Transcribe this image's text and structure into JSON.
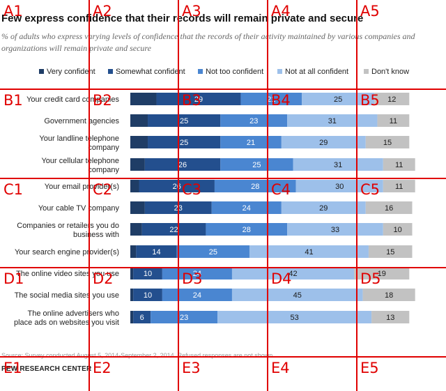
{
  "colors": {
    "very_confident": "#1f3d66",
    "somewhat_confident": "#234f8e",
    "not_too_confident": "#4a86d1",
    "not_at_all_confident": "#9dc0ea",
    "dont_know": "#c2c2c2",
    "grid_overlay": "#e00000"
  },
  "chart_data": {
    "type": "bar",
    "orientation": "horizontal-stacked",
    "title": "Few express confidence that their records will remain private and secure",
    "subtitle": "% of adults who express varying levels of confidence that the records of their activity maintained by various companies and organizations will remain private and secure",
    "categories": [
      "Your credit card companies",
      "Government agencies",
      "Your landline telephone company",
      "Your cellular telephone company",
      "Your email provider(s)",
      "Your cable TV company",
      "Companies or retailers you do business with",
      "Your search engine provider(s)",
      "The online video sites you use",
      "The social media sites you use",
      "The online advertisers who place ads on websites you visit"
    ],
    "series": [
      {
        "name": "Very confident",
        "values": [
          9,
          6,
          6,
          5,
          3,
          5,
          4,
          2,
          1,
          1,
          1
        ]
      },
      {
        "name": "Somewhat confident",
        "values": [
          29,
          25,
          25,
          26,
          26,
          23,
          22,
          14,
          10,
          10,
          6
        ]
      },
      {
        "name": "Not too confident",
        "values": [
          21,
          23,
          21,
          25,
          28,
          24,
          28,
          25,
          24,
          24,
          23
        ]
      },
      {
        "name": "Not at all confident",
        "values": [
          25,
          31,
          29,
          31,
          30,
          29,
          33,
          41,
          42,
          45,
          53
        ]
      },
      {
        "name": "Don't know",
        "values": [
          12,
          11,
          15,
          11,
          11,
          16,
          10,
          15,
          19,
          18,
          13
        ]
      }
    ],
    "legend_position": "top",
    "grid": false
  },
  "labels": {
    "rows": [
      [
        "Your credit card companies"
      ],
      [
        "Government agencies"
      ],
      [
        "Your landline telephone",
        "company"
      ],
      [
        "Your cellular telephone",
        "company"
      ],
      [
        "Your email provider(s)"
      ],
      [
        "Your cable TV company"
      ],
      [
        "Companies or retailers you do",
        "business with"
      ],
      [
        "Your search engine provider(s)"
      ],
      [
        "The online video sites you use"
      ],
      [
        "The social media sites you use"
      ],
      [
        "The online advertisers who",
        "place ads on websites you visit"
      ]
    ]
  },
  "source": "Source: Survey conducted August 5, 2014-September 2, 2014. Refused responses are not shown.",
  "brand": "PEW RESEARCH CENTER",
  "grid_overlay": {
    "rows": [
      "A",
      "B",
      "C",
      "D",
      "E"
    ],
    "cols": [
      "1",
      "2",
      "3",
      "4",
      "5"
    ]
  }
}
